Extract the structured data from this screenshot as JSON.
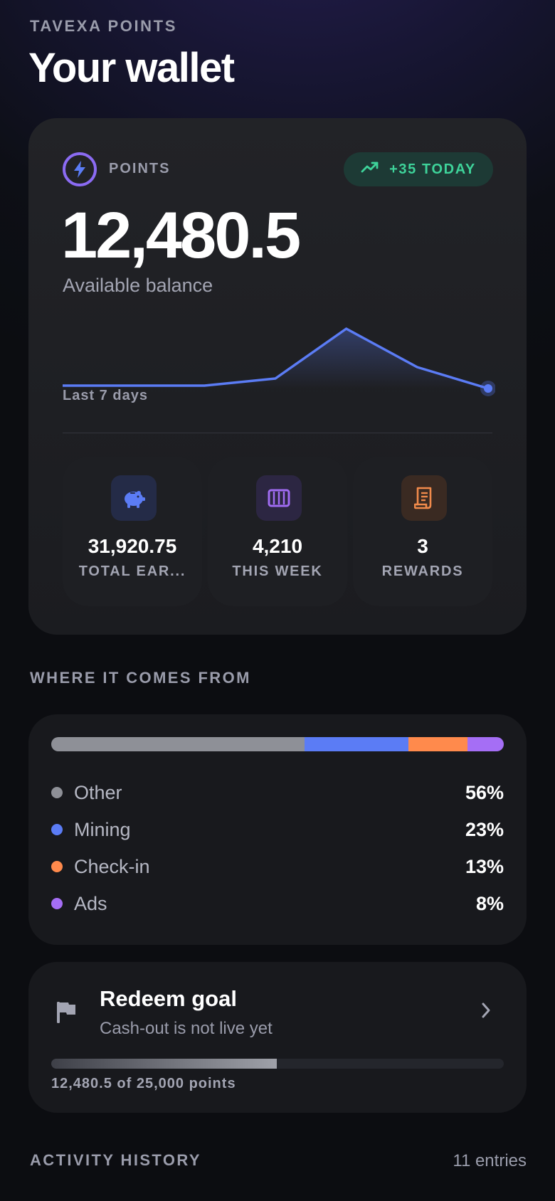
{
  "header": {
    "brand": "TAVEXA POINTS",
    "title": "Your wallet"
  },
  "balance": {
    "label": "POINTS",
    "today_badge": "+35 TODAY",
    "value": "12,480.5",
    "caption": "Available balance",
    "sparkline_label": "Last 7 days",
    "sparkline_values": [
      5,
      5,
      5,
      10,
      45,
      18,
      3
    ]
  },
  "stats": [
    {
      "icon": "piggy-bank-icon",
      "value": "31,920.75",
      "label": "TOTAL EAR...",
      "icon_color": "#5b7cf5",
      "icon_bg": "#242b47"
    },
    {
      "icon": "calendar-week-icon",
      "value": "4,210",
      "label": "THIS WEEK",
      "icon_color": "#a06cf2",
      "icon_bg": "#2c2642"
    },
    {
      "icon": "receipt-icon",
      "value": "3",
      "label": "REWARDS",
      "icon_color": "#f08a4b",
      "icon_bg": "#3a2a22"
    }
  ],
  "sources": {
    "title": "WHERE IT COMES FROM",
    "items": [
      {
        "name": "Other",
        "percent": 56,
        "label": "56%",
        "color": "#8e9097"
      },
      {
        "name": "Mining",
        "percent": 23,
        "label": "23%",
        "color": "#5b7cf5"
      },
      {
        "name": "Check-in",
        "percent": 13,
        "label": "13%",
        "color": "#ff8a4c"
      },
      {
        "name": "Ads",
        "percent": 8,
        "label": "8%",
        "color": "#a56ef5"
      }
    ]
  },
  "goal": {
    "title": "Redeem goal",
    "subtitle": "Cash-out is not live yet",
    "progress": 0.4992,
    "caption": "12,480.5 of 25,000 points"
  },
  "history": {
    "title": "ACTIVITY HISTORY",
    "count": "11 entries"
  },
  "colors": {
    "accent_purple": "#8b6bf2",
    "accent_blue": "#5b7cf5",
    "positive_green": "#3ed39a"
  }
}
